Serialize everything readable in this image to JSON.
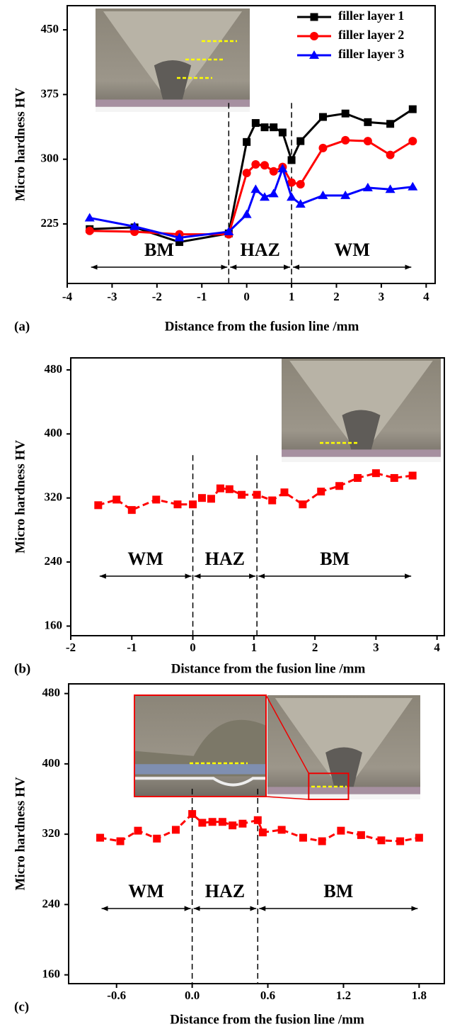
{
  "chart_data": [
    {
      "type": "line",
      "panel_label": "(a)",
      "x_label": "Distance from the fusion line /mm",
      "y_label": "Micro hardness HV",
      "xlim": [
        -4,
        4.2
      ],
      "ylim": [
        156,
        478
      ],
      "xticks": [
        -4,
        -3,
        -2,
        -1,
        0,
        1,
        2,
        3,
        4
      ],
      "yticks": [
        225,
        300,
        375,
        450
      ],
      "legend": "upper right",
      "x": [
        -3.5,
        -2.5,
        -1.5,
        -0.4,
        0,
        0.2,
        0.4,
        0.6,
        0.8,
        1.0,
        1.2,
        1.7,
        2.2,
        2.7,
        3.2,
        3.7
      ],
      "series": [
        {
          "name": "filler layer 1",
          "color": "#000000",
          "marker": "square",
          "values": [
            219,
            221,
            204,
            214,
            320,
            342,
            337,
            337,
            331,
            299,
            321,
            349,
            353,
            343,
            341,
            358
          ]
        },
        {
          "name": "filler layer 2",
          "color": "#ff0000",
          "marker": "circle",
          "values": [
            217,
            216,
            213,
            213,
            284,
            294,
            293,
            286,
            291,
            273,
            271,
            313,
            322,
            321,
            305,
            321
          ]
        },
        {
          "name": "filler layer 3",
          "color": "#0000ff",
          "marker": "triangle",
          "values": [
            232,
            222,
            209,
            216,
            236,
            265,
            256,
            260,
            289,
            256,
            248,
            258,
            258,
            267,
            265,
            268
          ]
        }
      ],
      "zones": [
        "BM",
        "HAZ",
        "WM"
      ],
      "zone_boundaries": [
        -0.4,
        1.0
      ]
    },
    {
      "type": "line",
      "panel_label": "(b)",
      "x_label": "Distance from the fusion line /mm",
      "y_label": "Micro hardness HV",
      "xlim": [
        -2,
        4.12
      ],
      "ylim": [
        148,
        495
      ],
      "xticks": [
        -2,
        -1,
        0,
        1,
        2,
        3,
        4
      ],
      "yticks": [
        160,
        240,
        320,
        400,
        480
      ],
      "x": [
        -1.55,
        -1.25,
        -1.0,
        -0.6,
        -0.25,
        0,
        0.15,
        0.3,
        0.45,
        0.6,
        0.8,
        1.05,
        1.3,
        1.5,
        1.8,
        2.1,
        2.4,
        2.7,
        3.0,
        3.3,
        3.6
      ],
      "series": [
        {
          "color": "#ff0000",
          "marker": "square",
          "values": [
            311,
            318,
            305,
            318,
            312,
            312,
            320,
            319,
            332,
            331,
            324,
            324,
            317,
            327,
            312,
            328,
            335,
            345,
            351,
            345,
            348
          ]
        }
      ],
      "zones": [
        "WM",
        "HAZ",
        "BM"
      ],
      "zone_boundaries": [
        0,
        1.05
      ]
    },
    {
      "type": "line",
      "panel_label": "(c)",
      "x_label": "Distance from the fusion line /mm",
      "y_label": "Micro hardness HV",
      "xlim": [
        -0.98,
        2.0
      ],
      "ylim": [
        150,
        491
      ],
      "xticks": [
        -0.6,
        {
          "value": 0,
          "label": "0.0"
        },
        0.6,
        1.2,
        1.8
      ],
      "yticks": [
        160,
        240,
        320,
        400,
        480
      ],
      "x": [
        -0.73,
        -0.57,
        -0.43,
        -0.28,
        -0.13,
        0,
        0.08,
        0.16,
        0.24,
        0.32,
        0.4,
        0.52,
        0.56,
        0.71,
        0.88,
        1.03,
        1.18,
        1.34,
        1.5,
        1.65,
        1.8
      ],
      "series": [
        {
          "color": "#ff0000",
          "marker": "square",
          "values": [
            316,
            312,
            324,
            315,
            325,
            343,
            333,
            334,
            334,
            330,
            332,
            336,
            322,
            325,
            316,
            312,
            324,
            319,
            313,
            312,
            316
          ]
        }
      ],
      "zones": [
        "WM",
        "HAZ",
        "BM"
      ],
      "zone_boundaries": [
        0,
        0.52
      ]
    }
  ]
}
